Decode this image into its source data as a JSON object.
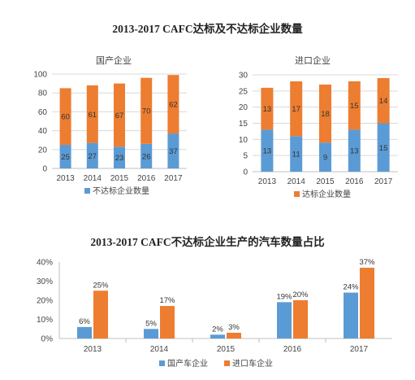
{
  "top_title": "2013-2017 CAFC达标及不达标企业数量",
  "bottom_title": "2013-2017 CAFC不达标企业生产的汽车数量占比",
  "colors": {
    "blue": "#5b9bd5",
    "orange": "#ed7d31",
    "grid": "#d9d9d9",
    "axis": "#bfbfbf"
  },
  "chart_data": [
    {
      "type": "bar",
      "stacked": true,
      "title": "国产企业",
      "categories": [
        "2013",
        "2014",
        "2015",
        "2016",
        "2017"
      ],
      "series": [
        {
          "name": "不达标企业数量",
          "values": [
            25,
            27,
            23,
            26,
            37
          ]
        },
        {
          "name": "",
          "values": [
            60,
            61,
            67,
            70,
            62
          ]
        }
      ],
      "ylim": [
        0,
        100
      ],
      "yticks": [
        0,
        20,
        40,
        60,
        80,
        100
      ],
      "grid": true,
      "legend": "bottom"
    },
    {
      "type": "bar",
      "stacked": true,
      "title": "进口企业",
      "categories": [
        "2013",
        "2014",
        "2015",
        "2016",
        "2017"
      ],
      "series": [
        {
          "name": "",
          "values": [
            13,
            11,
            9,
            13,
            15
          ]
        },
        {
          "name": "达标企业数量",
          "values": [
            13,
            17,
            18,
            15,
            14
          ]
        }
      ],
      "ylim": [
        0,
        30
      ],
      "yticks": [
        0,
        5,
        10,
        15,
        20,
        25,
        30
      ],
      "grid": true,
      "legend": "bottom"
    },
    {
      "type": "bar",
      "stacked": false,
      "title": "",
      "categories": [
        "2013",
        "2014",
        "2015",
        "2016",
        "2017"
      ],
      "series": [
        {
          "name": "国产车企业",
          "values": [
            6,
            5,
            2,
            19,
            24
          ]
        },
        {
          "name": "进口车企业",
          "values": [
            25,
            17,
            3,
            20,
            37
          ]
        }
      ],
      "ylim": [
        0,
        40
      ],
      "yticks": [
        "0%",
        "10%",
        "20%",
        "30%",
        "40%"
      ],
      "grid": false,
      "legend": "bottom"
    }
  ]
}
